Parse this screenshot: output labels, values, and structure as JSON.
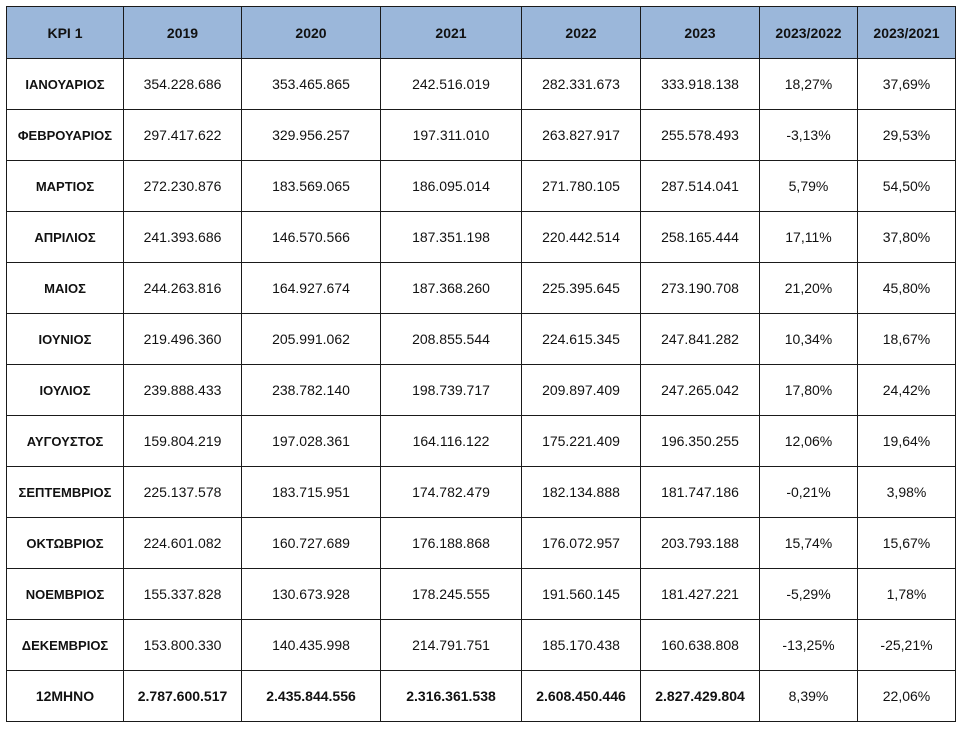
{
  "table": {
    "headers": [
      "KPI 1",
      "2019",
      "2020",
      "2021",
      "2022",
      "2023",
      "2023/2022",
      "2023/2021"
    ],
    "rows": [
      [
        "ΙΑΝΟΥΑΡΙΟΣ",
        "354.228.686",
        "353.465.865",
        "242.516.019",
        "282.331.673",
        "333.918.138",
        "18,27%",
        "37,69%"
      ],
      [
        "ΦΕΒΡΟΥΑΡΙΟΣ",
        "297.417.622",
        "329.956.257",
        "197.311.010",
        "263.827.917",
        "255.578.493",
        "-3,13%",
        "29,53%"
      ],
      [
        "ΜΑΡΤΙΟΣ",
        "272.230.876",
        "183.569.065",
        "186.095.014",
        "271.780.105",
        "287.514.041",
        "5,79%",
        "54,50%"
      ],
      [
        "ΑΠΡΙΛΙΟΣ",
        "241.393.686",
        "146.570.566",
        "187.351.198",
        "220.442.514",
        "258.165.444",
        "17,11%",
        "37,80%"
      ],
      [
        "ΜΑΙΟΣ",
        "244.263.816",
        "164.927.674",
        "187.368.260",
        "225.395.645",
        "273.190.708",
        "21,20%",
        "45,80%"
      ],
      [
        "ΙΟΥΝΙΟΣ",
        "219.496.360",
        "205.991.062",
        "208.855.544",
        "224.615.345",
        "247.841.282",
        "10,34%",
        "18,67%"
      ],
      [
        "ΙΟΥΛΙΟΣ",
        "239.888.433",
        "238.782.140",
        "198.739.717",
        "209.897.409",
        "247.265.042",
        "17,80%",
        "24,42%"
      ],
      [
        "ΑΥΓΟΥΣΤΟΣ",
        "159.804.219",
        "197.028.361",
        "164.116.122",
        "175.221.409",
        "196.350.255",
        "12,06%",
        "19,64%"
      ],
      [
        "ΣΕΠΤΕΜΒΡΙΟΣ",
        "225.137.578",
        "183.715.951",
        "174.782.479",
        "182.134.888",
        "181.747.186",
        "-0,21%",
        "3,98%"
      ],
      [
        "ΟΚΤΩΒΡΙΟΣ",
        "224.601.082",
        "160.727.689",
        "176.188.868",
        "176.072.957",
        "203.793.188",
        "15,74%",
        "15,67%"
      ],
      [
        "ΝΟΕΜΒΡΙΟΣ",
        "155.337.828",
        "130.673.928",
        "178.245.555",
        "191.560.145",
        "181.427.221",
        "-5,29%",
        "1,78%"
      ],
      [
        "ΔΕΚΕΜΒΡΙΟΣ",
        "153.800.330",
        "140.435.998",
        "214.791.751",
        "185.170.438",
        "160.638.808",
        "-13,25%",
        "-25,21%"
      ]
    ],
    "total": [
      "12ΜΗΝΟ",
      "2.787.600.517",
      "2.435.844.556",
      "2.316.361.538",
      "2.608.450.446",
      "2.827.429.804",
      "8,39%",
      "22,06%"
    ]
  },
  "colors": {
    "header_bg": "#9bb7da",
    "border": "#1a1a1a",
    "text": "#111111"
  }
}
